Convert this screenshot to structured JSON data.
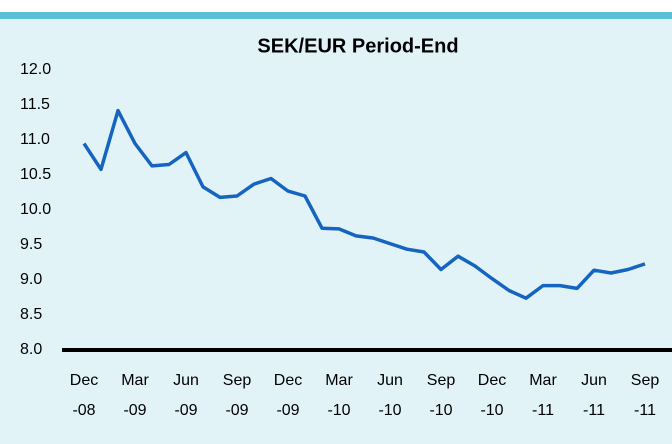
{
  "chart_data": {
    "type": "line",
    "title": "SEK/EUR Period-End",
    "categories": [
      "Dec -08",
      null,
      null,
      "Mar -09",
      null,
      null,
      "Jun -09",
      null,
      null,
      "Sep -09",
      null,
      null,
      "Dec -09",
      null,
      null,
      "Mar -10",
      null,
      null,
      "Jun -10",
      null,
      null,
      "Sep -10",
      null,
      null,
      "Dec -10",
      null,
      null,
      "Mar -11",
      null,
      null,
      "Jun -11",
      null,
      null,
      "Sep -11"
    ],
    "values": [
      10.95,
      10.58,
      11.42,
      10.95,
      10.63,
      10.65,
      10.82,
      10.33,
      10.18,
      10.2,
      10.37,
      10.45,
      10.27,
      10.2,
      9.74,
      9.73,
      9.63,
      9.6,
      9.52,
      9.44,
      9.4,
      9.15,
      9.34,
      9.2,
      9.02,
      8.85,
      8.74,
      8.92,
      8.92,
      8.88,
      9.14,
      9.1,
      9.15,
      9.23
    ],
    "color": "#1565c0",
    "ylim": [
      8,
      12
    ],
    "yticks": [
      {
        "value": 8,
        "label": "8.0"
      },
      {
        "value": 8.5,
        "label": "8.5"
      },
      {
        "value": 9,
        "label": "9.0"
      },
      {
        "value": 9.5,
        "label": "9.5"
      },
      {
        "value": 10,
        "label": "10.0"
      },
      {
        "value": 10.5,
        "label": "10.5"
      },
      {
        "value": 11,
        "label": "11.0"
      },
      {
        "value": 11.5,
        "label": "11.5"
      },
      {
        "value": 12,
        "label": "12.0"
      }
    ],
    "grid": false
  }
}
